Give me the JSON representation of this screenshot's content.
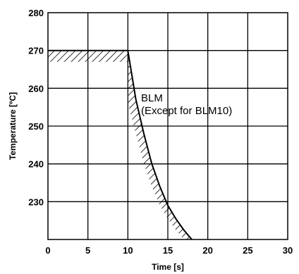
{
  "chart_data": {
    "type": "line",
    "title": "",
    "xlabel": "Time [s]",
    "ylabel": "Temperature [ºC]",
    "xlim": [
      0,
      30
    ],
    "ylim": [
      220,
      280
    ],
    "xticks": [
      0,
      5,
      10,
      15,
      20,
      25,
      30
    ],
    "yticks": [
      230,
      240,
      250,
      260,
      270,
      280
    ],
    "grid": true,
    "annotation_lines": [
      "BLM",
      "(Except for BLM10)"
    ],
    "upper_boundary": [
      {
        "x": 0,
        "y": 270
      },
      {
        "x": 10,
        "y": 270
      },
      {
        "x": 11,
        "y": 257
      },
      {
        "x": 12,
        "y": 248
      },
      {
        "x": 13,
        "y": 240
      },
      {
        "x": 14,
        "y": 234
      },
      {
        "x": 15,
        "y": 229
      },
      {
        "x": 16,
        "y": 225.5
      },
      {
        "x": 17,
        "y": 222.5
      },
      {
        "x": 18,
        "y": 220
      }
    ],
    "lower_boundary": [
      {
        "x": 0,
        "y": 267
      },
      {
        "x": 10,
        "y": 267
      },
      {
        "x": 10,
        "y": 256
      },
      {
        "x": 11,
        "y": 248
      },
      {
        "x": 12,
        "y": 240
      },
      {
        "x": 13,
        "y": 234
      },
      {
        "x": 14,
        "y": 229
      },
      {
        "x": 15,
        "y": 225.5
      },
      {
        "x": 16,
        "y": 222.5
      },
      {
        "x": 17,
        "y": 220
      }
    ]
  }
}
